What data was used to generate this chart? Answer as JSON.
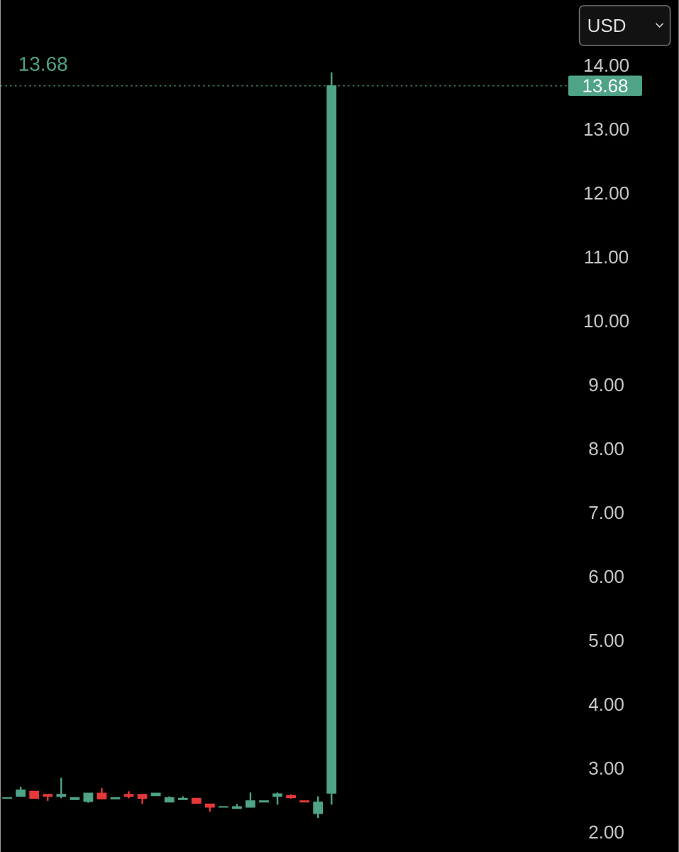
{
  "chart_data": {
    "type": "candlestick",
    "categories": [
      null,
      null,
      null,
      null,
      null,
      null,
      null,
      null,
      null,
      null,
      null,
      null,
      null,
      null,
      null,
      null,
      null,
      null,
      null,
      null,
      null,
      null,
      null,
      null,
      null,
      null,
      null,
      null,
      null,
      null,
      null,
      null,
      null,
      null,
      null,
      null,
      null,
      null,
      null,
      null,
      null,
      null
    ],
    "ohlc": [
      [
        2.53,
        2.54,
        2.52,
        2.54
      ],
      [
        2.56,
        2.71,
        2.56,
        2.66
      ],
      [
        2.64,
        2.64,
        2.53,
        2.53
      ],
      [
        2.59,
        2.59,
        2.49,
        2.56
      ],
      [
        2.56,
        2.85,
        2.53,
        2.59
      ],
      [
        2.51,
        2.54,
        2.51,
        2.54
      ],
      [
        2.48,
        2.61,
        2.46,
        2.61
      ],
      [
        2.61,
        2.69,
        2.52,
        2.52
      ],
      [
        2.52,
        2.54,
        2.52,
        2.54
      ],
      [
        2.59,
        2.64,
        2.53,
        2.56
      ],
      [
        2.59,
        2.59,
        2.44,
        2.53
      ],
      [
        2.57,
        2.61,
        2.57,
        2.61
      ],
      [
        2.47,
        2.56,
        2.47,
        2.54
      ],
      [
        2.51,
        2.56,
        2.51,
        2.53
      ],
      [
        2.53,
        2.53,
        2.45,
        2.45
      ],
      [
        2.44,
        2.44,
        2.32,
        2.39
      ],
      [
        2.39,
        2.4,
        2.39,
        2.4
      ],
      [
        2.37,
        2.44,
        2.37,
        2.4
      ],
      [
        2.39,
        2.62,
        2.39,
        2.49
      ],
      [
        2.47,
        2.49,
        2.47,
        2.49
      ],
      [
        2.56,
        2.62,
        2.43,
        2.6
      ],
      [
        2.57,
        2.59,
        2.52,
        2.54
      ],
      [
        2.49,
        2.49,
        2.47,
        2.47
      ],
      [
        2.29,
        2.56,
        2.22,
        2.47
      ],
      [
        2.61,
        13.89,
        2.43,
        13.68
      ],
      null,
      null,
      null,
      null,
      null,
      null,
      null,
      null,
      null,
      null,
      null,
      null,
      null,
      null,
      null,
      null,
      null
    ],
    "colors": [
      "#4fa386",
      "#4fa386",
      "#e5383b",
      "#e5383b",
      "#4fa386",
      "#4fa386",
      "#4fa386",
      "#e5383b",
      "#4fa386",
      "#e5383b",
      "#e5383b",
      "#4fa386",
      "#4fa386",
      "#4fa386",
      "#e5383b",
      "#e5383b",
      "#4fa386",
      "#4fa386",
      "#4fa386",
      "#4fa386",
      "#4fa386",
      "#e5383b",
      "#e5383b",
      "#4fa386",
      "#4fa386",
      null,
      null,
      null,
      null,
      null,
      null,
      null,
      null,
      null,
      null,
      null,
      null,
      null,
      null,
      null,
      null,
      null
    ],
    "ylim": [
      2,
      14
    ],
    "yticks": [
      {
        "value": 2,
        "label": "2.00"
      },
      {
        "value": 3,
        "label": "3.00"
      },
      {
        "value": 4,
        "label": "4.00"
      },
      {
        "value": 5,
        "label": "5.00"
      },
      {
        "value": 6,
        "label": "6.00"
      },
      {
        "value": 7,
        "label": "7.00"
      },
      {
        "value": 8,
        "label": "8.00"
      },
      {
        "value": 9,
        "label": "9.00"
      },
      {
        "value": 10,
        "label": "10.00"
      },
      {
        "value": 11,
        "label": "11.00"
      },
      {
        "value": 12,
        "label": "12.00"
      },
      {
        "value": 13,
        "label": "13.00"
      },
      {
        "value": 14,
        "label": "14.00"
      }
    ],
    "tick_labels": "y",
    "grid": false,
    "ref_lines": [
      {
        "axis": "y",
        "value": 13.68,
        "label": "13.68",
        "color": "#4fa386",
        "line_style": "dotted"
      }
    ],
    "annotations": [
      "13.68",
      "USD"
    ]
  }
}
